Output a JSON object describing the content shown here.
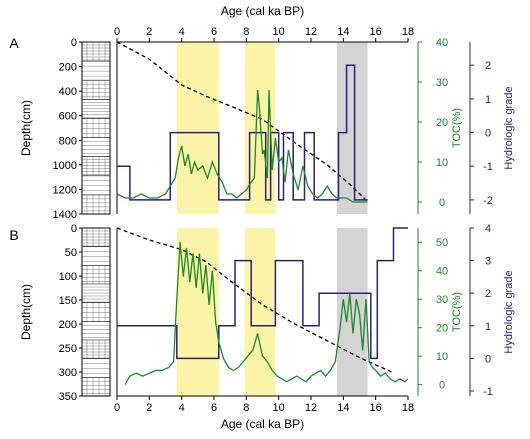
{
  "chart_data": [
    {
      "type": "line",
      "panel": "A",
      "x_axis": {
        "label": "Age (cal ka BP)",
        "ticks": [
          "0",
          "2",
          "4",
          "6",
          "8",
          "10",
          "12",
          "14",
          "16",
          "18"
        ],
        "range": [
          0,
          18
        ],
        "position": "top"
      },
      "depth_axis": {
        "label": "Depth(cm)",
        "ticks": [
          "0",
          "200",
          "400",
          "600",
          "800",
          "1000",
          "1200",
          "1400"
        ],
        "range": [
          0,
          1400
        ]
      },
      "toc_axis": {
        "label": "TOC(%)",
        "ticks": [
          "0",
          "10",
          "20",
          "30",
          "40"
        ],
        "range": [
          -3,
          40
        ],
        "color": "#1a8a2a"
      },
      "hydro_axis": {
        "label": "Hydrologic grade",
        "ticks": [
          "-2",
          "-1",
          "0",
          "1",
          "2"
        ],
        "range": [
          -2.3,
          2.6
        ],
        "color": "#2b1f78"
      },
      "shaded_intervals": [
        {
          "from": 3.7,
          "to": 6.3,
          "color": "#fbf3a6"
        },
        {
          "from": 7.9,
          "to": 9.8,
          "color": "#fbf3a6"
        },
        {
          "from": 13.6,
          "to": 15.5,
          "color": "#d4d4d4"
        }
      ],
      "series": [
        {
          "key": "age_depth",
          "color": "#000000",
          "style": "dashed",
          "x": [
            0,
            2,
            4,
            5.5,
            7,
            9,
            11,
            13,
            14.5,
            15.5
          ],
          "y": [
            0,
            140,
            350,
            440,
            520,
            630,
            820,
            1000,
            1170,
            1300
          ]
        },
        {
          "key": "hydrologic_grade",
          "color": "#2b1f78",
          "style": "step",
          "x": [
            0,
            0.8,
            0.8,
            3.3,
            3.3,
            6.3,
            6.3,
            8.2,
            8.2,
            9.2,
            9.2,
            9.5,
            9.5,
            10.0,
            10.0,
            10.3,
            10.3,
            10.9,
            10.9,
            11.6,
            11.6,
            12.2,
            12.2,
            13.0,
            13.0,
            13.7,
            13.7,
            14.2,
            14.2,
            14.7,
            14.7,
            15.5
          ],
          "y": [
            -1,
            -1,
            -2,
            -2,
            0,
            0,
            -2,
            -2,
            0,
            0,
            -2,
            -2,
            0,
            0,
            -2,
            -2,
            0,
            0,
            -2,
            -2,
            0,
            0,
            -2,
            -2,
            -2,
            -2,
            0,
            0,
            2,
            2,
            -2,
            -2
          ]
        },
        {
          "key": "toc",
          "color": "#1a8a2a",
          "style": "solid",
          "x": [
            0,
            0.5,
            1.0,
            1.5,
            2.0,
            2.5,
            3.0,
            3.3,
            3.6,
            3.8,
            4.0,
            4.2,
            4.4,
            4.6,
            4.8,
            5.0,
            5.3,
            5.6,
            5.9,
            6.2,
            6.5,
            6.8,
            7.1,
            7.4,
            7.7,
            8.0,
            8.3,
            8.5,
            8.7,
            8.8,
            9.0,
            9.1,
            9.3,
            9.4,
            9.6,
            9.8,
            10.0,
            10.2,
            10.4,
            10.6,
            10.9,
            11.2,
            11.5,
            11.8,
            12.1,
            12.4,
            12.7,
            13.0,
            13.3,
            13.6,
            13.9,
            14.2,
            14.6,
            15.0,
            15.5
          ],
          "y": [
            2,
            1,
            1,
            2,
            1,
            1,
            2,
            4,
            6,
            11,
            14,
            9,
            12,
            7,
            10,
            8,
            9,
            6,
            10,
            7,
            5,
            2,
            2,
            1,
            2,
            3,
            5,
            6,
            28,
            24,
            12,
            13,
            6,
            28,
            8,
            16,
            10,
            11,
            5,
            13,
            7,
            3,
            9,
            4,
            2,
            1,
            2,
            4,
            2,
            1,
            1,
            1,
            0,
            0,
            0
          ]
        }
      ]
    },
    {
      "type": "line",
      "panel": "B",
      "x_axis": {
        "label": "Age (cal ka BP)",
        "ticks": [
          "0",
          "2",
          "4",
          "6",
          "8",
          "10",
          "12",
          "14",
          "16",
          "18"
        ],
        "range": [
          0,
          18
        ],
        "position": "bottom"
      },
      "depth_axis": {
        "label": "Depth(cm)",
        "ticks": [
          "0",
          "50",
          "100",
          "150",
          "200",
          "250",
          "300",
          "350"
        ],
        "range": [
          0,
          350
        ]
      },
      "toc_axis": {
        "label": "TOC(%)",
        "ticks": [
          "0",
          "10",
          "20",
          "30",
          "40",
          "50"
        ],
        "range": [
          -4,
          55
        ],
        "color": "#1a8a2a"
      },
      "hydro_axis": {
        "label": "Hydrologic grade",
        "ticks": [
          "-1",
          "0",
          "1",
          "2",
          "3",
          "4"
        ],
        "range": [
          -1,
          4
        ],
        "color": "#2b1f78"
      },
      "shaded_intervals": [
        {
          "from": 3.7,
          "to": 6.3,
          "color": "#fbf3a6"
        },
        {
          "from": 7.9,
          "to": 9.8,
          "color": "#fbf3a6"
        },
        {
          "from": 13.6,
          "to": 15.5,
          "color": "#d4d4d4"
        }
      ],
      "series": [
        {
          "key": "age_depth",
          "color": "#000000",
          "style": "dashed",
          "x": [
            0,
            2,
            4,
            5.5,
            7,
            9,
            11,
            13,
            15,
            17
          ],
          "y": [
            0,
            25,
            45,
            70,
            110,
            160,
            200,
            235,
            270,
            300
          ]
        },
        {
          "key": "hydrologic_grade",
          "color": "#2b1f78",
          "style": "step",
          "x": [
            0,
            3.7,
            3.7,
            6.3,
            6.3,
            7.3,
            7.3,
            8.3,
            8.3,
            9.8,
            9.8,
            11.5,
            11.5,
            12.5,
            12.5,
            13.7,
            13.7,
            15.7,
            15.7,
            16.1,
            16.1,
            17.1,
            17.1,
            18
          ],
          "y": [
            1,
            1,
            0,
            0,
            1,
            1,
            3,
            3,
            1,
            1,
            3,
            3,
            1,
            1,
            2,
            2,
            2,
            2,
            0,
            0,
            3,
            3,
            4,
            4
          ]
        },
        {
          "key": "toc",
          "color": "#1a8a2a",
          "style": "solid",
          "x": [
            0.5,
            0.8,
            1.2,
            1.6,
            2.0,
            2.4,
            2.8,
            3.2,
            3.5,
            3.7,
            3.9,
            4.1,
            4.3,
            4.5,
            4.7,
            4.9,
            5.1,
            5.3,
            5.5,
            5.7,
            5.9,
            6.1,
            6.3,
            6.6,
            6.9,
            7.2,
            7.5,
            7.8,
            8.1,
            8.4,
            8.7,
            9.0,
            9.3,
            9.6,
            9.9,
            10.2,
            10.5,
            10.8,
            11.1,
            11.4,
            11.7,
            12.0,
            12.3,
            12.6,
            12.9,
            13.2,
            13.5,
            13.8,
            14.0,
            14.2,
            14.4,
            14.6,
            14.8,
            15.0,
            15.2,
            15.4,
            15.6,
            15.8,
            16.0,
            16.3,
            16.6,
            16.9,
            17.2,
            17.5,
            17.8,
            18.0
          ],
          "y": [
            0,
            3,
            4,
            3,
            4,
            5,
            5,
            6,
            8,
            30,
            50,
            38,
            48,
            36,
            46,
            34,
            46,
            32,
            42,
            28,
            40,
            22,
            15,
            9,
            6,
            5,
            6,
            8,
            10,
            12,
            18,
            10,
            8,
            5,
            3,
            2,
            1,
            2,
            3,
            2,
            1,
            3,
            4,
            5,
            3,
            5,
            8,
            20,
            30,
            22,
            32,
            18,
            30,
            25,
            12,
            30,
            8,
            6,
            5,
            3,
            4,
            2,
            1,
            2,
            1,
            2
          ]
        }
      ]
    }
  ]
}
